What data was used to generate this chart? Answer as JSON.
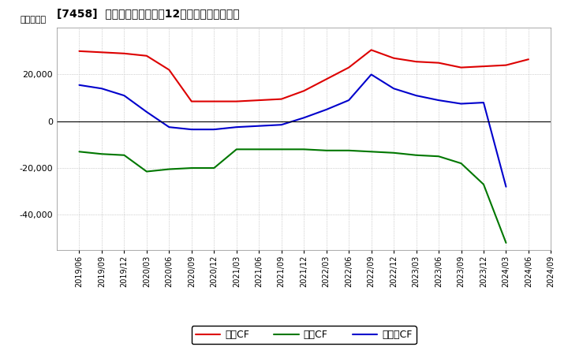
{
  "title": "[7458]  キャッシュフローの12か月移動合計の推移",
  "ylabel": "（百万円）",
  "background_color": "#ffffff",
  "grid_color": "#aaaaaa",
  "ylim": [
    -55000,
    40000
  ],
  "yticks": [
    -40000,
    -20000,
    0,
    20000
  ],
  "dates": [
    "2019/06",
    "2019/09",
    "2019/12",
    "2020/03",
    "2020/06",
    "2020/09",
    "2020/12",
    "2021/03",
    "2021/06",
    "2021/09",
    "2021/12",
    "2022/03",
    "2022/06",
    "2022/09",
    "2022/12",
    "2023/03",
    "2023/06",
    "2023/09",
    "2023/12",
    "2024/03",
    "2024/06",
    "2024/09"
  ],
  "operating_cf": [
    30000,
    29500,
    29000,
    28000,
    22000,
    8500,
    8500,
    8500,
    9000,
    9500,
    13000,
    18000,
    23000,
    30500,
    27000,
    25500,
    25000,
    23000,
    23500,
    24000,
    26500,
    null
  ],
  "investing_cf": [
    -13000,
    -14000,
    -14500,
    -21500,
    -20500,
    -20000,
    -20000,
    -12000,
    -12000,
    -12000,
    -12000,
    -12500,
    -12500,
    -13000,
    -13500,
    -14500,
    -15000,
    -18000,
    -27000,
    -52000,
    null,
    null
  ],
  "free_cf": [
    15500,
    14000,
    11000,
    4000,
    -2500,
    -3500,
    -3500,
    -2500,
    -2000,
    -1500,
    1500,
    5000,
    9000,
    20000,
    14000,
    11000,
    9000,
    7500,
    8000,
    -28000,
    null,
    null
  ],
  "operating_color": "#dd0000",
  "investing_color": "#007700",
  "free_color": "#0000cc",
  "line_width": 1.5,
  "legend_labels": [
    "営業CF",
    "投資CF",
    "フリーCF"
  ]
}
